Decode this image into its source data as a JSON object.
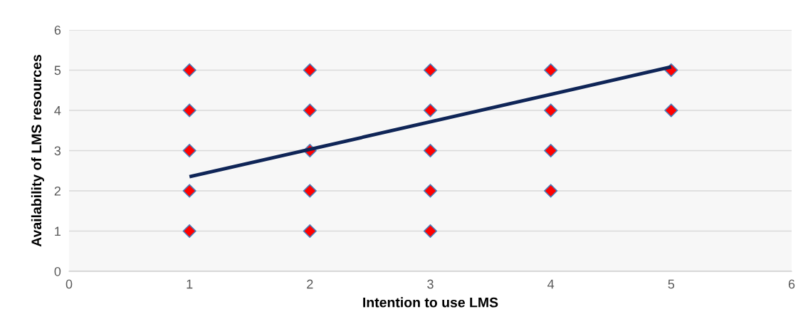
{
  "chart_data": {
    "type": "scatter",
    "xlabel": "Intention to use LMS",
    "ylabel": "Availability of LMS resources",
    "xlim": [
      0,
      6
    ],
    "ylim": [
      0,
      6
    ],
    "xticks": [
      0,
      1,
      2,
      3,
      4,
      5,
      6
    ],
    "yticks": [
      0,
      1,
      2,
      3,
      4,
      5,
      6
    ],
    "grid": "y",
    "series": [
      {
        "marker": "diamond",
        "color": "#ff0000",
        "x": [
          1,
          1,
          1,
          1,
          1,
          2,
          2,
          2,
          2,
          2,
          3,
          3,
          3,
          3,
          3,
          4,
          4,
          4,
          4,
          5,
          5
        ],
        "values": [
          1,
          2,
          3,
          4,
          5,
          1,
          2,
          3,
          4,
          5,
          1,
          2,
          3,
          4,
          5,
          2,
          3,
          4,
          5,
          4,
          5
        ]
      },
      {
        "type": "line",
        "marker": "none",
        "color": "#0f2557",
        "x": [
          1,
          5
        ],
        "values": [
          2.35,
          5.08
        ]
      }
    ]
  }
}
